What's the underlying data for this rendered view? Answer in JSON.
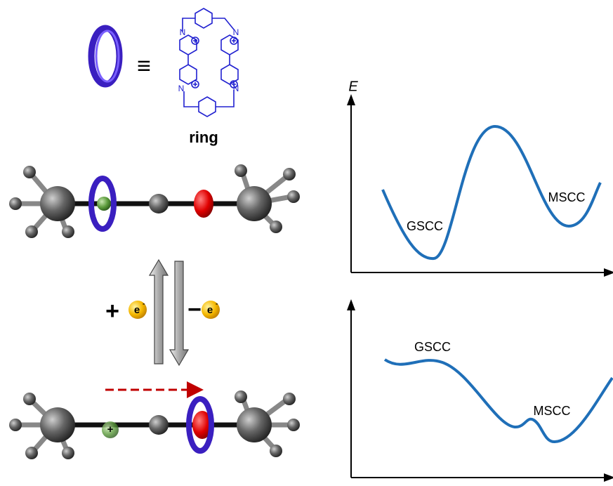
{
  "legend": {
    "symbol": "≡",
    "label": "ring",
    "atoms": [
      "N",
      "N",
      "N",
      "N"
    ]
  },
  "redox": {
    "reduce": {
      "sign": "+",
      "electron": "e",
      "charge": "-"
    },
    "oxidize": {
      "sign": "−",
      "electron": "e",
      "charge": "-"
    },
    "station_charge": "+"
  },
  "profiles": {
    "top": {
      "axis_label": "E",
      "left_minimum": "GSCC",
      "right_minimum": "MSCC"
    },
    "bottom": {
      "left_minimum": "GSCC",
      "right_minimum": "MSCC"
    }
  }
}
